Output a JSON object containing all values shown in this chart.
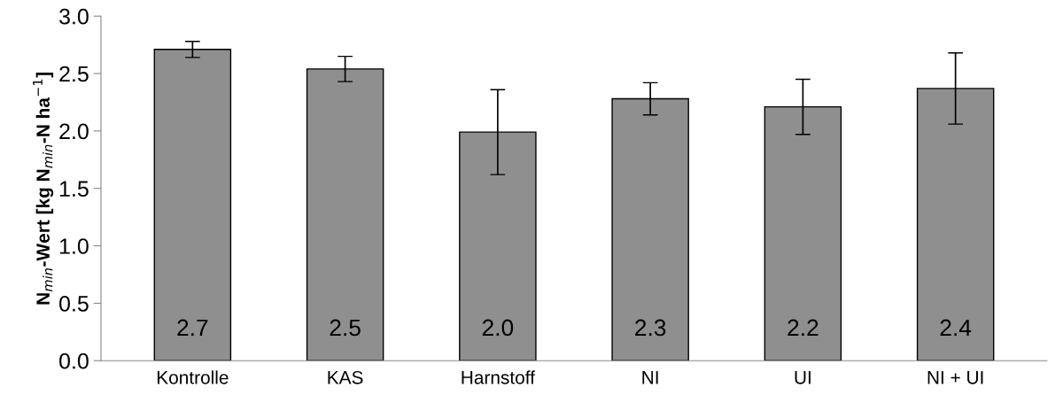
{
  "chart_data": {
    "type": "bar",
    "ylabel": "N$_{min}$-Wert [kg N$_{min}$-N ha$^{−1}$]",
    "categories": [
      "Kontrolle",
      "KAS",
      "Harnstoff",
      "NI",
      "UI",
      "NI + UI"
    ],
    "values": [
      2.71,
      2.54,
      1.99,
      2.28,
      2.21,
      2.37
    ],
    "errors": [
      0.07,
      0.11,
      0.37,
      0.14,
      0.24,
      0.31
    ],
    "value_labels": [
      "2.7",
      "2.5",
      "2.0",
      "2.3",
      "2.2",
      "2.4"
    ],
    "color": "#8f8f8f",
    "ylim": [
      0,
      3.0
    ],
    "yticks": [
      {
        "value": 0,
        "label": "0.0"
      },
      {
        "value": 0.5,
        "label": "0.5"
      },
      {
        "value": 1.0,
        "label": "1.0"
      },
      {
        "value": 1.5,
        "label": "1.5"
      },
      {
        "value": 2.0,
        "label": "2.0"
      },
      {
        "value": 2.5,
        "label": "2.5"
      },
      {
        "value": 3.0,
        "label": "3.0"
      }
    ],
    "grid": false,
    "legend": false
  }
}
